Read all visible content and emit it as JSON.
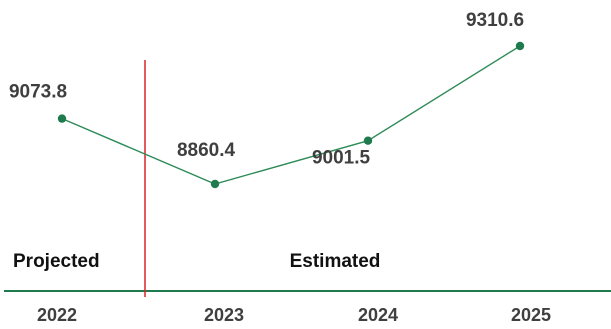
{
  "chart_data": {
    "type": "line",
    "categories": [
      "2022",
      "2023",
      "2024",
      "2025"
    ],
    "values": [
      9073.8,
      8860.4,
      9001.5,
      9310.6
    ],
    "value_labels": [
      "9073.8",
      "8860.4",
      "9001.5",
      "9310.6"
    ],
    "divider_after_category": "2022",
    "regions": {
      "left": "Projected",
      "right": "Estimated"
    },
    "ylim": [
      8700,
      9400
    ],
    "grid": false,
    "legend": "none",
    "colors": {
      "line": "#2e8b57",
      "marker": "#1f7a4d",
      "axis": "#1f7a4d",
      "divider": "#d9252a"
    }
  }
}
